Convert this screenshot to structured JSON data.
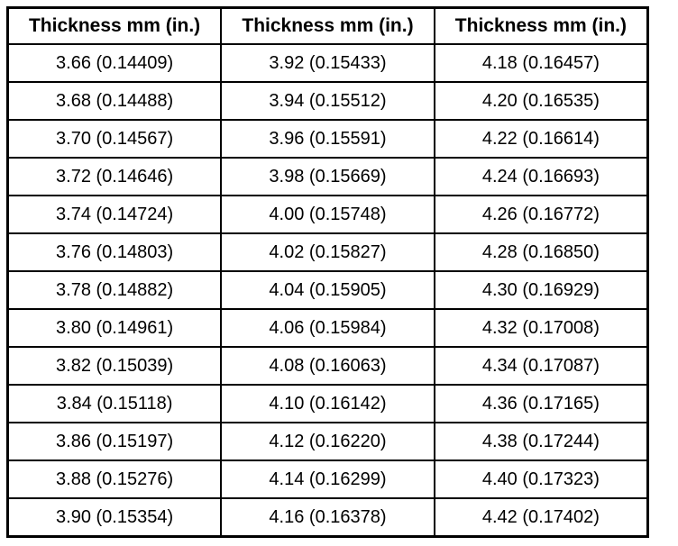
{
  "table": {
    "header": [
      "Thickness mm (in.)",
      "Thickness mm (in.)",
      "Thickness mm (in.)"
    ],
    "rows": [
      [
        "3.66 (0.14409)",
        "3.92 (0.15433)",
        "4.18 (0.16457)"
      ],
      [
        "3.68 (0.14488)",
        "3.94 (0.15512)",
        "4.20 (0.16535)"
      ],
      [
        "3.70 (0.14567)",
        "3.96 (0.15591)",
        "4.22 (0.16614)"
      ],
      [
        "3.72 (0.14646)",
        "3.98 (0.15669)",
        "4.24 (0.16693)"
      ],
      [
        "3.74 (0.14724)",
        "4.00 (0.15748)",
        "4.26 (0.16772)"
      ],
      [
        "3.76 (0.14803)",
        "4.02 (0.15827)",
        "4.28 (0.16850)"
      ],
      [
        "3.78 (0.14882)",
        "4.04 (0.15905)",
        "4.30 (0.16929)"
      ],
      [
        "3.80 (0.14961)",
        "4.06 (0.15984)",
        "4.32 (0.17008)"
      ],
      [
        "3.82 (0.15039)",
        "4.08 (0.16063)",
        "4.34 (0.17087)"
      ],
      [
        "3.84 (0.15118)",
        "4.10 (0.16142)",
        "4.36 (0.17165)"
      ],
      [
        "3.86 (0.15197)",
        "4.12 (0.16220)",
        "4.38 (0.17244)"
      ],
      [
        "3.88 (0.15276)",
        "4.14 (0.16299)",
        "4.40 (0.17323)"
      ],
      [
        "3.90 (0.15354)",
        "4.16 (0.16378)",
        "4.42 (0.17402)"
      ]
    ]
  }
}
